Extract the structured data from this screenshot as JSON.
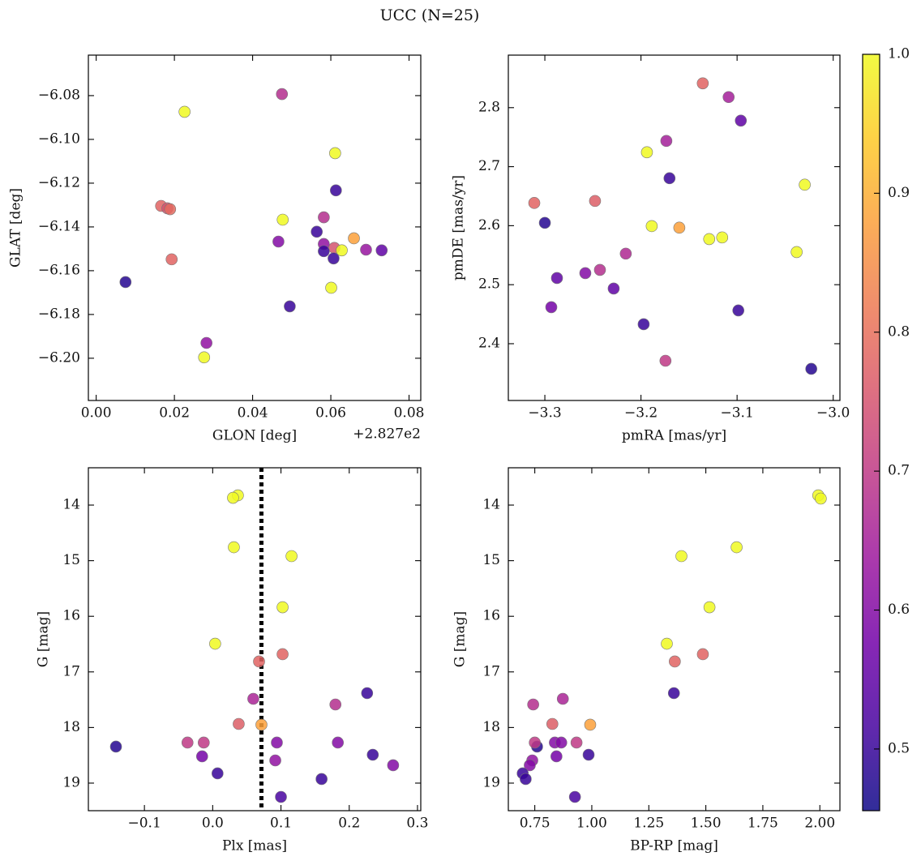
{
  "title": "UCC (N=25)",
  "colormap": [
    "#0d0887",
    "#46039f",
    "#7201a8",
    "#9c179e",
    "#bd3786",
    "#d8576b",
    "#ed7953",
    "#fb9f3a",
    "#fdca26",
    "#f0f921"
  ],
  "colorbar": {
    "clim": [
      0.4556,
      1.0
    ],
    "ticks": [
      0.5,
      0.6,
      0.7,
      0.8,
      0.9,
      {
        "value": 1.0,
        "label": "1.0"
      }
    ]
  },
  "chart_data": [
    {
      "type": "scatter",
      "xlabel": "GLON [deg]",
      "ylabel": "GLAT [deg]",
      "x_offset_label": "+2.827e2",
      "xlim": [
        -0.002,
        0.083
      ],
      "ylim": [
        -6.2193,
        -6.0615
      ],
      "xticks": [
        {
          "value": 0,
          "label": "0.00"
        },
        0.02,
        0.04,
        0.06,
        0.08
      ],
      "yticks": [
        {
          "value": -6.08,
          "label": "−6.08"
        },
        {
          "value": -6.1,
          "label": "−6.10"
        },
        {
          "value": -6.12,
          "label": "−6.12"
        },
        {
          "value": -6.14,
          "label": "−6.14"
        },
        {
          "value": -6.16,
          "label": "−6.16"
        },
        {
          "value": -6.18,
          "label": "−6.18"
        },
        {
          "value": -6.2,
          "label": "−6.20"
        }
      ],
      "x": [
        0.0226,
        0.0475,
        0.0611,
        0.0613,
        0.0166,
        0.0182,
        0.0189,
        0.0477,
        0.0582,
        0.0564,
        0.0659,
        0.0466,
        0.0582,
        0.0609,
        0.0628,
        0.0582,
        0.069,
        0.073,
        0.0607,
        0.0193,
        0.0075,
        0.0601,
        0.0495,
        0.0282,
        0.0276
      ],
      "y": [
        -6.0874,
        -6.0793,
        -6.1063,
        -6.1233,
        -6.1304,
        -6.1315,
        -6.1319,
        -6.1367,
        -6.1356,
        -6.1422,
        -6.1452,
        -6.1467,
        -6.1478,
        -6.1496,
        -6.1507,
        -6.1511,
        -6.1504,
        -6.1507,
        -6.1544,
        -6.1548,
        -6.1652,
        -6.1678,
        -6.1763,
        -6.193,
        -6.1996
      ],
      "c": [
        1.0,
        0.68,
        1.0,
        0.5,
        0.78,
        0.75,
        0.79,
        1.0,
        0.68,
        0.5,
        0.88,
        0.6,
        0.62,
        0.75,
        1.0,
        0.5,
        0.63,
        0.55,
        0.5,
        0.78,
        0.48,
        1.0,
        0.5,
        0.62,
        1.0
      ]
    },
    {
      "type": "scatter",
      "xlabel": "pmRA [mas/yr]",
      "ylabel": "pmDE [mas/yr]",
      "xlim": [
        -3.338,
        -2.993
      ],
      "ylim": [
        2.3038,
        2.889
      ],
      "xticks": [
        {
          "value": -3.3,
          "label": "−3.3"
        },
        {
          "value": -3.2,
          "label": "−3.2"
        },
        {
          "value": -3.1,
          "label": "−3.1"
        },
        {
          "value": -3.0,
          "label": "−3.0"
        }
      ],
      "yticks": [
        2.4,
        2.5,
        2.6,
        2.7,
        2.8
      ],
      "x": [
        -3.1357,
        -3.1088,
        -3.0961,
        -3.1736,
        -3.1938,
        -3.1703,
        -3.0296,
        -3.311,
        -3.2478,
        -3.3,
        -3.1888,
        -3.1601,
        -3.129,
        -3.1155,
        -3.038,
        -3.2158,
        -3.2427,
        -3.2579,
        -3.2874,
        -3.2284,
        -3.2933,
        -3.0987,
        -3.1972,
        -3.1745,
        -3.0228
      ],
      "y": [
        2.8412,
        2.8179,
        2.778,
        2.7436,
        2.7244,
        2.6804,
        2.6694,
        2.6385,
        2.6419,
        2.6048,
        2.5993,
        2.5966,
        2.5773,
        2.5801,
        2.5553,
        2.5526,
        2.5251,
        2.5196,
        2.5113,
        2.4935,
        2.4619,
        2.4564,
        2.433,
        2.3711,
        2.3574
      ],
      "c": [
        0.78,
        0.65,
        0.55,
        0.65,
        1.0,
        0.5,
        1.0,
        0.78,
        0.77,
        0.48,
        1.0,
        0.88,
        1.0,
        1.0,
        1.0,
        0.67,
        0.68,
        0.6,
        0.55,
        0.55,
        0.58,
        0.5,
        0.5,
        0.7,
        0.48
      ]
    },
    {
      "type": "scatter",
      "xlabel": "Plx [mas]",
      "ylabel": "G [mag]",
      "vline": 0.0714,
      "xlim": [
        -0.1821,
        0.3048
      ],
      "ylim": [
        19.496,
        13.329
      ],
      "xticks": [
        {
          "value": -0.1,
          "label": "−0.1"
        },
        {
          "value": 0,
          "label": "0.0"
        },
        0.1,
        0.2,
        0.3
      ],
      "yticks": [
        14,
        15,
        16,
        17,
        18,
        19
      ],
      "x": [
        0.0369,
        0.0298,
        0.031,
        0.1155,
        0.1024,
        0.0036,
        0.1024,
        0.0679,
        0.2262,
        0.0595,
        0.1798,
        0.0381,
        0.0714,
        -0.1417,
        -0.0369,
        -0.0131,
        0.094,
        0.1833,
        -0.0155,
        0.2345,
        0.0917,
        0.2643,
        0.0071,
        0.1595,
        0.1
      ],
      "y": [
        13.825,
        13.869,
        14.758,
        14.918,
        15.837,
        16.493,
        16.682,
        16.813,
        17.382,
        17.484,
        17.586,
        17.936,
        17.95,
        18.344,
        18.271,
        18.271,
        18.271,
        18.271,
        18.519,
        18.49,
        18.592,
        18.679,
        18.825,
        18.927,
        19.248
      ],
      "c": [
        1.0,
        1.0,
        1.0,
        1.0,
        1.0,
        1.0,
        0.78,
        0.78,
        0.5,
        0.66,
        0.68,
        0.77,
        0.88,
        0.48,
        0.7,
        0.7,
        0.6,
        0.6,
        0.58,
        0.5,
        0.62,
        0.6,
        0.5,
        0.5,
        0.52
      ]
    },
    {
      "type": "scatter",
      "xlabel": "BP-RP [mag]",
      "ylabel": "G [mag]",
      "xlim": [
        0.634,
        2.088
      ],
      "ylim": [
        19.496,
        13.329
      ],
      "xticks": [
        0.75,
        {
          "value": 1.0,
          "label": "1.00"
        },
        1.25,
        {
          "value": 1.5,
          "label": "1.50"
        },
        1.75,
        {
          "value": 2.0,
          "label": "2.00"
        }
      ],
      "yticks": [
        14,
        15,
        16,
        17,
        18,
        19
      ],
      "x": [
        1.993,
        2.004,
        1.635,
        1.393,
        1.516,
        1.329,
        1.487,
        1.364,
        1.36,
        0.873,
        0.743,
        0.827,
        0.993,
        0.76,
        0.75,
        0.933,
        0.838,
        0.866,
        0.845,
        0.986,
        0.739,
        0.728,
        0.697,
        0.71,
        0.926
      ],
      "y": [
        13.825,
        13.883,
        14.758,
        14.918,
        15.837,
        16.493,
        16.682,
        16.813,
        17.382,
        17.484,
        17.586,
        17.936,
        17.95,
        18.344,
        18.271,
        18.271,
        18.271,
        18.271,
        18.519,
        18.49,
        18.592,
        18.679,
        18.825,
        18.927,
        19.248
      ],
      "c": [
        1.0,
        1.0,
        1.0,
        1.0,
        1.0,
        1.0,
        0.78,
        0.78,
        0.5,
        0.66,
        0.68,
        0.77,
        0.88,
        0.48,
        0.7,
        0.7,
        0.6,
        0.6,
        0.58,
        0.5,
        0.62,
        0.6,
        0.5,
        0.5,
        0.52
      ]
    }
  ]
}
